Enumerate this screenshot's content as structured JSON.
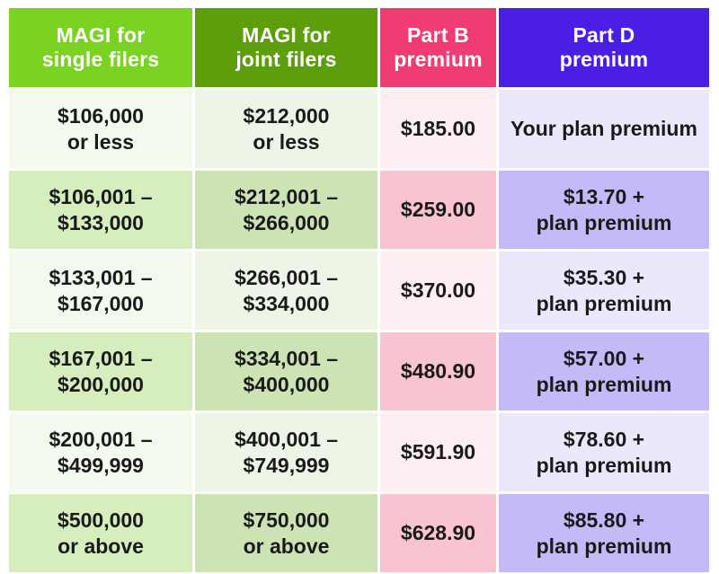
{
  "colors": {
    "col1_header": "#7ad322",
    "col2_header": "#5d9e0c",
    "col3_header": "#ef3d73",
    "col4_header": "#4a1fe3",
    "col1_light": "#f3f9ec",
    "col1_dark": "#d6eebd",
    "col2_light": "#eef5e6",
    "col2_dark": "#cde3b4",
    "col3_light": "#fdeef1",
    "col3_dark": "#f9c4d2",
    "col4_light": "#ebe8fc",
    "col4_dark": "#c5b9f7"
  },
  "headers": [
    "MAGI for\nsingle filers",
    "MAGI for\njoint filers",
    "Part B\npremium",
    "Part D\npremium"
  ],
  "rows": [
    [
      "$106,000\nor less",
      "$212,000\nor less",
      "$185.00",
      "Your plan premium"
    ],
    [
      "$106,001 –\n$133,000",
      "$212,001 –\n$266,000",
      "$259.00",
      "$13.70 +\nplan premium"
    ],
    [
      "$133,001 –\n$167,000",
      "$266,001 –\n$334,000",
      "$370.00",
      "$35.30 +\nplan premium"
    ],
    [
      "$167,001 –\n$200,000",
      "$334,001 –\n$400,000",
      "$480.90",
      "$57.00 +\nplan premium"
    ],
    [
      "$200,001 –\n$499,999",
      "$400,001 –\n$749,999",
      "$591.90",
      "$78.60 +\nplan premium"
    ],
    [
      "$500,000\nor above",
      "$750,000\nor above",
      "$628.90",
      "$85.80 +\nplan premium"
    ]
  ]
}
